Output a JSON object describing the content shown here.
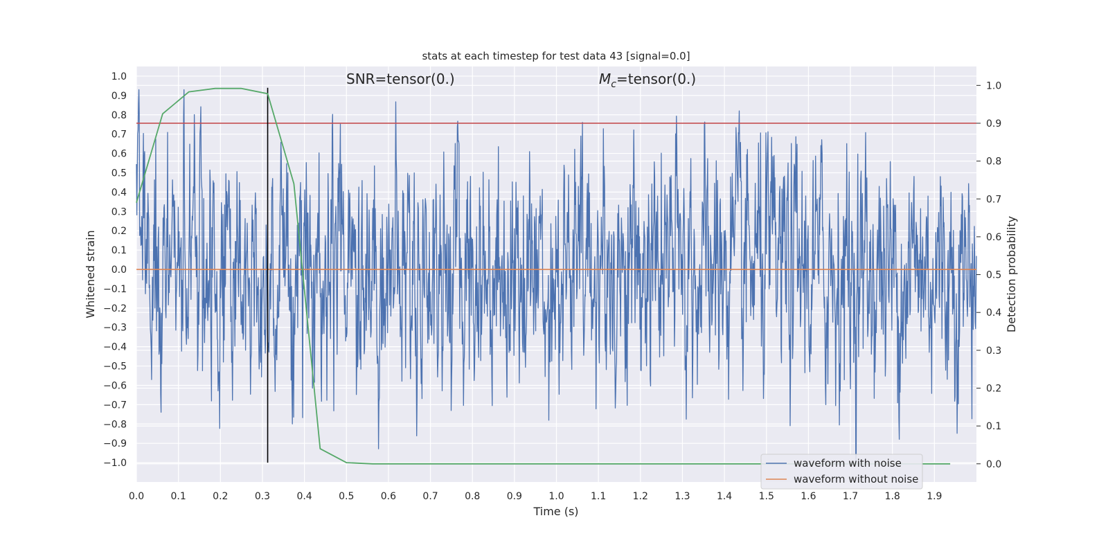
{
  "chart_data": {
    "type": "line",
    "title": "stats at each timestep for test data 43 [signal=0.0]",
    "xlabel": "Time (s)",
    "ylabel": "Whitened strain",
    "y2label": "Detection probability",
    "xlim": [
      0.0,
      2.0
    ],
    "ylim": [
      -1.1,
      1.05
    ],
    "y2lim": [
      -0.048,
      1.05
    ],
    "xticks": [
      0.0,
      0.1,
      0.2,
      0.3,
      0.4,
      0.5,
      0.6,
      0.7,
      0.8,
      0.9,
      1.0,
      1.1,
      1.2,
      1.3,
      1.4,
      1.5,
      1.6,
      1.7,
      1.8,
      1.9
    ],
    "yticks": [
      1.0,
      0.9,
      0.8,
      0.7,
      0.6,
      0.5,
      0.4,
      0.3,
      0.2,
      0.1,
      0.0,
      -0.1,
      -0.2,
      -0.3,
      -0.4,
      -0.5,
      -0.6,
      -0.7,
      -0.8,
      -0.9,
      -1.0
    ],
    "y2ticks": [
      1.0,
      0.9,
      0.8,
      0.7,
      0.6,
      0.5,
      0.4,
      0.3,
      0.2,
      0.1,
      0.0
    ],
    "annotations": {
      "snr": "SNR=tensor(0.)",
      "mc_symbol": "M",
      "mc_subscript": "c",
      "mc_value": "=tensor(0.)"
    },
    "series": [
      {
        "name": "waveform with noise",
        "color": "#4c72b0",
        "axis": "left",
        "kind": "noise",
        "n_points": 2048,
        "x_range": [
          0.0,
          2.0
        ],
        "y_extent": [
          -1.0,
          0.93
        ]
      },
      {
        "name": "waveform without noise",
        "color": "#dd8452",
        "axis": "left",
        "x": [
          0.0,
          2.0
        ],
        "values": [
          0.0,
          0.0
        ]
      },
      {
        "name": "",
        "color": "#55a868",
        "axis": "right",
        "x": [
          0.0,
          0.0625,
          0.125,
          0.1875,
          0.25,
          0.3125,
          0.375,
          0.4375,
          0.5,
          0.5625,
          0.625,
          0.6875,
          0.75,
          0.8125,
          0.875,
          0.9375,
          1.0,
          1.0625,
          1.125,
          1.1875,
          1.25,
          1.3125,
          1.375,
          1.4375,
          1.5,
          1.5625,
          1.625,
          1.6875,
          1.75,
          1.8125,
          1.875,
          1.9375
        ],
        "values": [
          0.69,
          0.925,
          0.983,
          0.992,
          0.992,
          0.978,
          0.74,
          0.04,
          0.003,
          0.0,
          0.0,
          0.0,
          0.0,
          0.0,
          0.0,
          0.0,
          0.0,
          0.0,
          0.0,
          0.0,
          0.0,
          0.0,
          0.0,
          0.0,
          0.0,
          0.0,
          0.0,
          0.0,
          0.0,
          0.0,
          0.0,
          0.0
        ]
      }
    ],
    "threshold": {
      "color": "#c44e52",
      "axis": "right",
      "value": 0.9
    },
    "marker_time": {
      "color": "#000000",
      "x": 0.3125,
      "y_range": [
        -1.0,
        0.94
      ]
    },
    "legend": {
      "placement": "lower right",
      "entries": [
        "waveform with noise",
        "waveform without noise"
      ]
    },
    "grid": true,
    "background": "#eaeaf2"
  }
}
